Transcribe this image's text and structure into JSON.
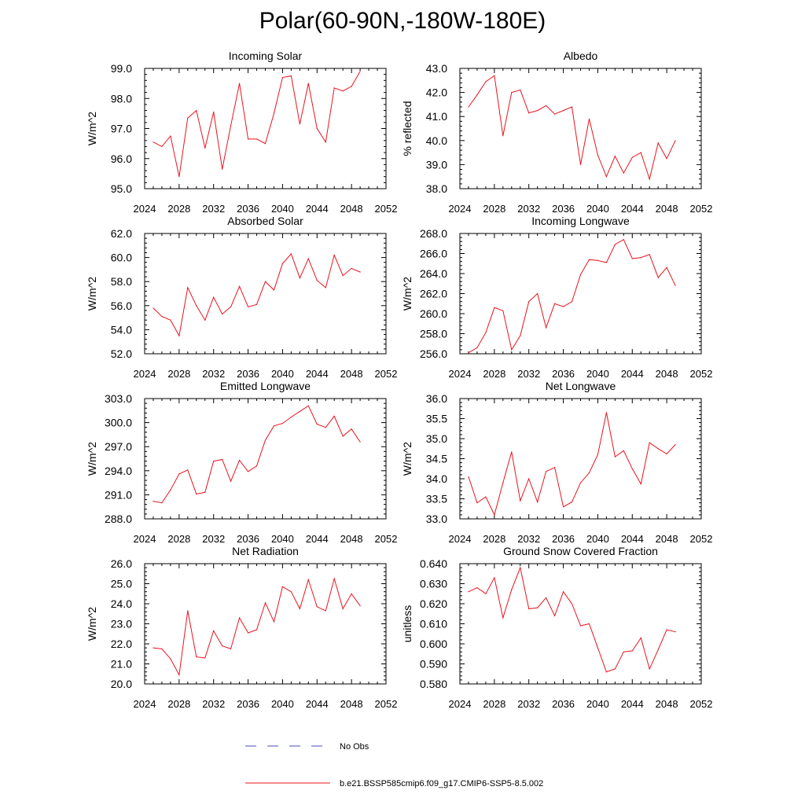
{
  "figure": {
    "title": "Polar(60-90N,-180W-180E)",
    "line_color": "#e8141e",
    "obs_color": "#4a4ab8"
  },
  "legend": {
    "obs_label": "No Obs",
    "model_label": "b.e21.BSSP585cmip6.f09_g17.CMIP6-SSP5-8.5.002"
  },
  "chart_data": [
    {
      "type": "line",
      "title": "Incoming Solar",
      "ylabel": "W/m^2",
      "xlim": [
        2024,
        2052
      ],
      "ylim": [
        95.0,
        99.0
      ],
      "xticks": [
        2024,
        2028,
        2032,
        2036,
        2040,
        2044,
        2048,
        2052
      ],
      "yticks": [
        "95.0",
        "96.0",
        "97.0",
        "98.0",
        "99.0"
      ],
      "x": [
        2025,
        2026,
        2027,
        2028,
        2029,
        2030,
        2031,
        2032,
        2033,
        2034,
        2035,
        2036,
        2037,
        2038,
        2039,
        2040,
        2041,
        2042,
        2043,
        2044,
        2045,
        2046,
        2047,
        2048,
        2049
      ],
      "values": [
        96.55,
        96.4,
        96.75,
        95.4,
        97.35,
        97.6,
        96.35,
        97.55,
        95.65,
        97.1,
        98.5,
        96.65,
        96.65,
        96.5,
        97.5,
        98.7,
        98.75,
        97.15,
        98.5,
        97.0,
        96.55,
        98.35,
        98.25,
        98.4,
        98.9
      ]
    },
    {
      "type": "line",
      "title": "Albedo",
      "ylabel": "% reflected",
      "xlim": [
        2024,
        2052
      ],
      "ylim": [
        38.0,
        43.0
      ],
      "xticks": [
        2024,
        2028,
        2032,
        2036,
        2040,
        2044,
        2048,
        2052
      ],
      "yticks": [
        "38.0",
        "39.0",
        "40.0",
        "41.0",
        "42.0",
        "43.0"
      ],
      "x": [
        2025,
        2026,
        2027,
        2028,
        2029,
        2030,
        2031,
        2032,
        2033,
        2034,
        2035,
        2036,
        2037,
        2038,
        2039,
        2040,
        2041,
        2042,
        2043,
        2044,
        2045,
        2046,
        2047,
        2048,
        2049
      ],
      "values": [
        41.4,
        41.9,
        42.45,
        42.7,
        40.2,
        42.0,
        42.1,
        41.15,
        41.25,
        41.45,
        41.1,
        41.25,
        41.4,
        39.0,
        40.9,
        39.4,
        38.5,
        39.35,
        38.65,
        39.3,
        39.5,
        38.4,
        39.9,
        39.25,
        40.0
      ]
    },
    {
      "type": "line",
      "title": "Absorbed Solar",
      "ylabel": "W/m^2",
      "xlim": [
        2024,
        2052
      ],
      "ylim": [
        52.0,
        62.0
      ],
      "xticks": [
        2024,
        2028,
        2032,
        2036,
        2040,
        2044,
        2048,
        2052
      ],
      "yticks": [
        "52.0",
        "54.0",
        "56.0",
        "58.0",
        "60.0",
        "62.0"
      ],
      "x": [
        2025,
        2026,
        2027,
        2028,
        2029,
        2030,
        2031,
        2032,
        2033,
        2034,
        2035,
        2036,
        2037,
        2038,
        2039,
        2040,
        2041,
        2042,
        2043,
        2044,
        2045,
        2046,
        2047,
        2048,
        2049
      ],
      "values": [
        55.8,
        55.1,
        54.8,
        53.5,
        57.5,
        56.0,
        54.8,
        56.7,
        55.3,
        55.9,
        57.6,
        55.9,
        56.1,
        58.0,
        57.3,
        59.5,
        60.3,
        58.3,
        59.9,
        58.1,
        57.5,
        60.2,
        58.5,
        59.1,
        58.8
      ]
    },
    {
      "type": "line",
      "title": "Incoming Longwave",
      "ylabel": "W/m^2",
      "xlim": [
        2024,
        2052
      ],
      "ylim": [
        256.0,
        268.0
      ],
      "xticks": [
        2024,
        2028,
        2032,
        2036,
        2040,
        2044,
        2048,
        2052
      ],
      "yticks": [
        "256.0",
        "258.0",
        "260.0",
        "262.0",
        "264.0",
        "266.0",
        "268.0"
      ],
      "x": [
        2025,
        2026,
        2027,
        2028,
        2029,
        2030,
        2031,
        2032,
        2033,
        2034,
        2035,
        2036,
        2037,
        2038,
        2039,
        2040,
        2041,
        2042,
        2043,
        2044,
        2045,
        2046,
        2047,
        2048,
        2049
      ],
      "values": [
        256.1,
        256.6,
        258.1,
        260.6,
        260.3,
        256.4,
        257.8,
        261.2,
        262.0,
        258.6,
        261.0,
        260.7,
        261.2,
        263.9,
        265.4,
        265.3,
        265.1,
        266.9,
        267.4,
        265.5,
        265.6,
        265.9,
        263.6,
        264.6,
        262.8
      ]
    },
    {
      "type": "line",
      "title": "Emitted Longwave",
      "ylabel": "W/m^2",
      "xlim": [
        2024,
        2052
      ],
      "ylim": [
        288.0,
        303.0
      ],
      "xticks": [
        2024,
        2028,
        2032,
        2036,
        2040,
        2044,
        2048,
        2052
      ],
      "yticks": [
        "288.0",
        "291.0",
        "294.0",
        "297.0",
        "300.0",
        "303.0"
      ],
      "x": [
        2025,
        2026,
        2027,
        2028,
        2029,
        2030,
        2031,
        2032,
        2033,
        2034,
        2035,
        2036,
        2037,
        2038,
        2039,
        2040,
        2041,
        2042,
        2043,
        2044,
        2045,
        2046,
        2047,
        2048,
        2049
      ],
      "values": [
        290.2,
        290.0,
        291.6,
        293.6,
        294.1,
        291.1,
        291.3,
        295.2,
        295.4,
        292.7,
        295.3,
        293.9,
        294.6,
        297.8,
        299.6,
        299.9,
        300.7,
        301.4,
        302.1,
        299.8,
        299.4,
        300.8,
        298.3,
        299.2,
        297.6
      ]
    },
    {
      "type": "line",
      "title": "Net Longwave",
      "ylabel": "W/m^2",
      "xlim": [
        2024,
        2052
      ],
      "ylim": [
        33.0,
        36.0
      ],
      "xticks": [
        2024,
        2028,
        2032,
        2036,
        2040,
        2044,
        2048,
        2052
      ],
      "yticks": [
        "33.0",
        "33.5",
        "34.0",
        "34.5",
        "35.0",
        "35.5",
        "36.0"
      ],
      "x": [
        2025,
        2026,
        2027,
        2028,
        2029,
        2030,
        2031,
        2032,
        2033,
        2034,
        2035,
        2036,
        2037,
        2038,
        2039,
        2040,
        2041,
        2042,
        2043,
        2044,
        2045,
        2046,
        2047,
        2048,
        2049
      ],
      "values": [
        34.05,
        33.4,
        33.55,
        33.1,
        33.9,
        34.67,
        33.45,
        34.0,
        33.42,
        34.18,
        34.28,
        33.3,
        33.42,
        33.9,
        34.15,
        34.6,
        35.65,
        34.55,
        34.7,
        34.25,
        33.87,
        34.9,
        34.75,
        34.62,
        34.85
      ]
    },
    {
      "type": "line",
      "title": "Net Radiation",
      "ylabel": "W/m^2",
      "xlim": [
        2024,
        2052
      ],
      "ylim": [
        20.0,
        26.0
      ],
      "xticks": [
        2024,
        2028,
        2032,
        2036,
        2040,
        2044,
        2048,
        2052
      ],
      "yticks": [
        "20.0",
        "21.0",
        "22.0",
        "23.0",
        "24.0",
        "25.0",
        "26.0"
      ],
      "x": [
        2025,
        2026,
        2027,
        2028,
        2029,
        2030,
        2031,
        2032,
        2033,
        2034,
        2035,
        2036,
        2037,
        2038,
        2039,
        2040,
        2041,
        2042,
        2043,
        2044,
        2045,
        2046,
        2047,
        2048,
        2049
      ],
      "values": [
        21.8,
        21.75,
        21.25,
        20.45,
        23.65,
        21.35,
        21.3,
        22.65,
        21.9,
        21.75,
        23.3,
        22.55,
        22.7,
        24.05,
        23.1,
        24.85,
        24.6,
        23.75,
        25.2,
        23.85,
        23.65,
        25.25,
        23.75,
        24.5,
        23.9
      ]
    },
    {
      "type": "line",
      "title": "Ground Snow Covered Fraction",
      "ylabel": "unitless",
      "xlim": [
        2024,
        2052
      ],
      "ylim": [
        0.58,
        0.64
      ],
      "xticks": [
        2024,
        2028,
        2032,
        2036,
        2040,
        2044,
        2048,
        2052
      ],
      "yticks": [
        "0.580",
        "0.590",
        "0.600",
        "0.610",
        "0.620",
        "0.630",
        "0.640"
      ],
      "x": [
        2025,
        2026,
        2027,
        2028,
        2029,
        2030,
        2031,
        2032,
        2033,
        2034,
        2035,
        2036,
        2037,
        2038,
        2039,
        2040,
        2041,
        2042,
        2043,
        2044,
        2045,
        2046,
        2047,
        2048,
        2049
      ],
      "values": [
        0.626,
        0.628,
        0.625,
        0.633,
        0.613,
        0.627,
        0.638,
        0.6175,
        0.618,
        0.623,
        0.614,
        0.626,
        0.62,
        0.609,
        0.61,
        0.598,
        0.586,
        0.5875,
        0.596,
        0.5965,
        0.603,
        0.5875,
        0.597,
        0.607,
        0.606
      ]
    }
  ]
}
